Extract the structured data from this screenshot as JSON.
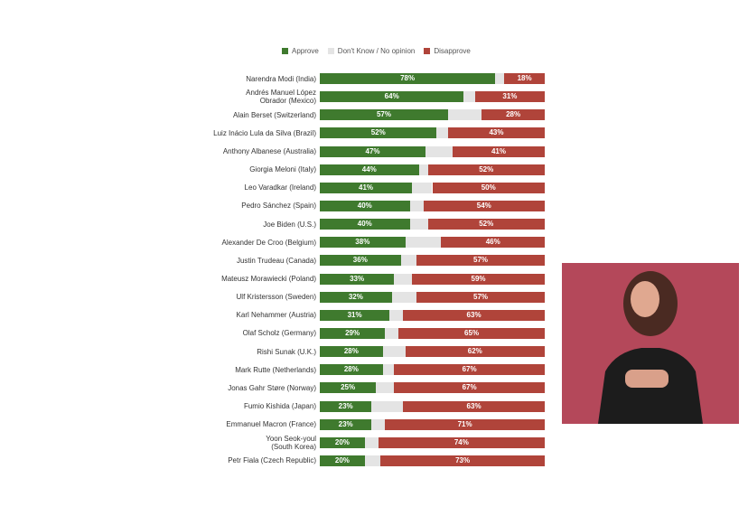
{
  "chart_data": {
    "type": "stacked-bar-horizontal",
    "categories": [
      "Narendra Modi (India)",
      "Andrés Manuel López\nObrador (Mexico)",
      "Alain Berset (Switzerland)",
      "Luiz Inácio Lula da Silva (Brazil)",
      "Anthony Albanese (Australia)",
      "Giorgia Meloni (Italy)",
      "Leo Varadkar (Ireland)",
      "Pedro Sánchez (Spain)",
      "Joe Biden (U.S.)",
      "Alexander De Croo (Belgium)",
      "Justin Trudeau (Canada)",
      "Mateusz Morawiecki (Poland)",
      "Ulf Kristersson (Sweden)",
      "Karl Nehammer (Austria)",
      "Olaf Scholz (Germany)",
      "Rishi Sunak (U.K.)",
      "Mark Rutte (Netherlands)",
      "Jonas Gahr Støre (Norway)",
      "Fumio Kishida (Japan)",
      "Emmanuel Macron (France)",
      "Yoon Seok-youl\n(South Korea)",
      "Petr Fiala (Czech Republic)"
    ],
    "xlim": [
      0,
      100
    ],
    "legend": "top",
    "series": [
      {
        "name": "Approve",
        "color": "#3f7a2e",
        "values": [
          78,
          64,
          57,
          52,
          47,
          44,
          41,
          40,
          40,
          38,
          36,
          33,
          32,
          31,
          29,
          28,
          28,
          25,
          23,
          23,
          20,
          20
        ],
        "value_labels": [
          "78%",
          "64%",
          "57%",
          "52%",
          "47%",
          "44%",
          "41%",
          "40%",
          "40%",
          "38%",
          "36%",
          "33%",
          "32%",
          "31%",
          "29%",
          "28%",
          "28%",
          "25%",
          "23%",
          "23%",
          "20%",
          "20%"
        ]
      },
      {
        "name": "Don't Know / No opinion",
        "color": "#e4e4e4",
        "values": [
          4,
          5,
          15,
          5,
          12,
          4,
          9,
          6,
          8,
          16,
          7,
          8,
          11,
          6,
          6,
          10,
          5,
          8,
          14,
          6,
          6,
          7
        ]
      },
      {
        "name": "Disapprove",
        "color": "#b0443a",
        "values": [
          18,
          31,
          28,
          43,
          41,
          52,
          50,
          54,
          52,
          46,
          57,
          59,
          57,
          63,
          65,
          62,
          67,
          67,
          63,
          71,
          74,
          73
        ],
        "value_labels": [
          "18%",
          "31%",
          "28%",
          "43%",
          "41%",
          "52%",
          "50%",
          "54%",
          "52%",
          "46%",
          "57%",
          "59%",
          "57%",
          "63%",
          "65%",
          "62%",
          "67%",
          "67%",
          "63%",
          "71%",
          "74%",
          "73%"
        ]
      }
    ]
  }
}
